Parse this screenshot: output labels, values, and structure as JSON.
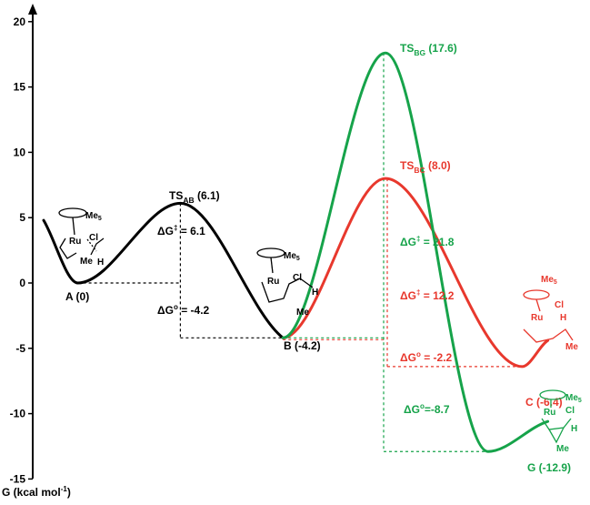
{
  "chart_data": {
    "type": "line",
    "ylabel_main": "G (kcal mol",
    "ylabel_sup": "-1",
    "ylabel_end": ")",
    "ylim": [
      -15,
      20
    ],
    "yticks": [
      "20",
      "15",
      "10",
      "5",
      "0",
      "-5",
      "-10",
      "-15"
    ],
    "ytick_values": [
      20,
      15,
      10,
      5,
      0,
      -5,
      -10,
      -15
    ],
    "states": {
      "A": {
        "text": "A (0)",
        "g": 0
      },
      "TS_AB": {
        "main": "TS",
        "sub": "AB",
        "value": " (6.1)",
        "g": 6.1
      },
      "B": {
        "text": "B (-4.2)",
        "g": -4.2
      },
      "TS_BC": {
        "main": "TS",
        "sub": "BC",
        "value": " (8.0)",
        "g": 8.0
      },
      "C": {
        "text": "C (-6.4)",
        "g": -6.4
      },
      "TS_BG": {
        "main": "TS",
        "sub": "BG",
        "value": " (17.6)",
        "g": 17.6
      },
      "G": {
        "text": "G (-12.9)",
        "g": -12.9
      }
    },
    "series": [
      {
        "color": "#000000",
        "points": [
          [
            0,
            4.8
          ],
          [
            0.4,
            0
          ],
          [
            1.6,
            6.1
          ],
          [
            2.8,
            -4.2
          ]
        ]
      },
      {
        "color": "#e8382d",
        "points": [
          [
            2.8,
            -4.2
          ],
          [
            4.0,
            8.0
          ],
          [
            5.6,
            -6.4
          ],
          [
            5.9,
            -4.4
          ]
        ]
      },
      {
        "color": "#16a34a",
        "points": [
          [
            2.8,
            -4.2
          ],
          [
            4.0,
            17.6
          ],
          [
            5.2,
            -12.9
          ],
          [
            5.9,
            -10.6
          ]
        ]
      }
    ],
    "annotations": {
      "dg_ab_barrier": {
        "prefix": "ΔG",
        "sup": "‡",
        "value": " = 6.1"
      },
      "dg_ab_reaction": {
        "prefix": "ΔG",
        "sup": "o",
        "value": " = -4.2"
      },
      "dg_bg_barrier": {
        "prefix": "ΔG",
        "sup": "‡",
        "value": " = 21.8"
      },
      "dg_bc_barrier": {
        "prefix": "ΔG",
        "sup": "‡",
        "value": " = 12.2"
      },
      "dg_bc_reaction": {
        "prefix": "ΔG",
        "sup": "o",
        "value": " = -2.2"
      },
      "dg_bg_reaction": {
        "prefix": "ΔG",
        "sup": "o",
        "value": "=-8.7"
      }
    },
    "molecule_labels": {
      "me5": "Me",
      "me5_sub": "5",
      "ru": "Ru",
      "cl": "Cl",
      "me": "Me",
      "h": "H"
    }
  },
  "colors": {
    "black": "#000000",
    "red": "#e8382d",
    "green": "#16a34a"
  }
}
